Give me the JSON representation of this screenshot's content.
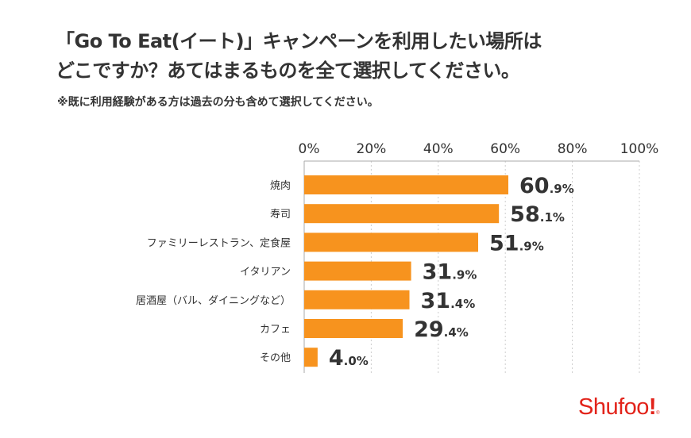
{
  "title_line1": "「Go To Eat(イート)」キャンペーンを利用したい場所は",
  "title_line2": "どこですか？あてはまるものを全て選択してください。",
  "subtitle": "※既に利用経験がある方は過去の分も含めて選択してください。",
  "logo": "Shufoo!",
  "chart_data": {
    "type": "bar",
    "orientation": "horizontal",
    "categories": [
      "焼肉",
      "寿司",
      "ファミリーレストラン、定食屋",
      "イタリアン",
      "居酒屋（バル、ダイニングなど）",
      "カフェ",
      "その他"
    ],
    "values": [
      60.9,
      58.1,
      51.9,
      31.9,
      31.4,
      29.4,
      4.0
    ],
    "data_labels": [
      [
        "60",
        ".9%"
      ],
      [
        "58",
        ".1%"
      ],
      [
        "51",
        ".9%"
      ],
      [
        "31",
        ".9%"
      ],
      [
        "31",
        ".4%"
      ],
      [
        "29",
        ".4%"
      ],
      [
        "4",
        ".0%"
      ]
    ],
    "xlim": [
      0,
      100
    ],
    "x_ticks": [
      "0%",
      "20%",
      "40%",
      "60%",
      "80%",
      "100%"
    ],
    "x_axis_position": "top",
    "grid": true,
    "bar_color": "#f7931e"
  }
}
